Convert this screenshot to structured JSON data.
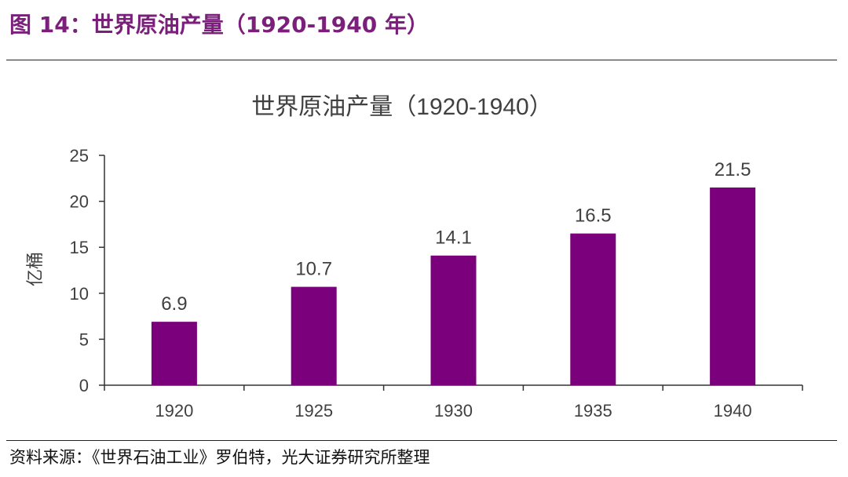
{
  "figure": {
    "caption": "图 14：世界原油产量（1920-1940 年）",
    "source": "资料来源：《世界石油工业》罗伯特，光大证券研究所整理"
  },
  "colors": {
    "bar": "#7b007b",
    "caption": "#7a1f7a",
    "axis": "#333333",
    "text": "#404040"
  },
  "chart_data": {
    "type": "bar",
    "title": "世界原油产量（1920-1940）",
    "xlabel": "",
    "ylabel": "亿桶",
    "categories": [
      "1920",
      "1925",
      "1930",
      "1935",
      "1940"
    ],
    "values": [
      6.9,
      10.7,
      14.1,
      16.5,
      21.5
    ],
    "data_labels": [
      "6.9",
      "10.7",
      "14.1",
      "16.5",
      "21.5"
    ],
    "ylim": [
      0,
      25
    ],
    "yticks": [
      0,
      5,
      10,
      15,
      20,
      25
    ],
    "grid": false,
    "legend": "none"
  }
}
